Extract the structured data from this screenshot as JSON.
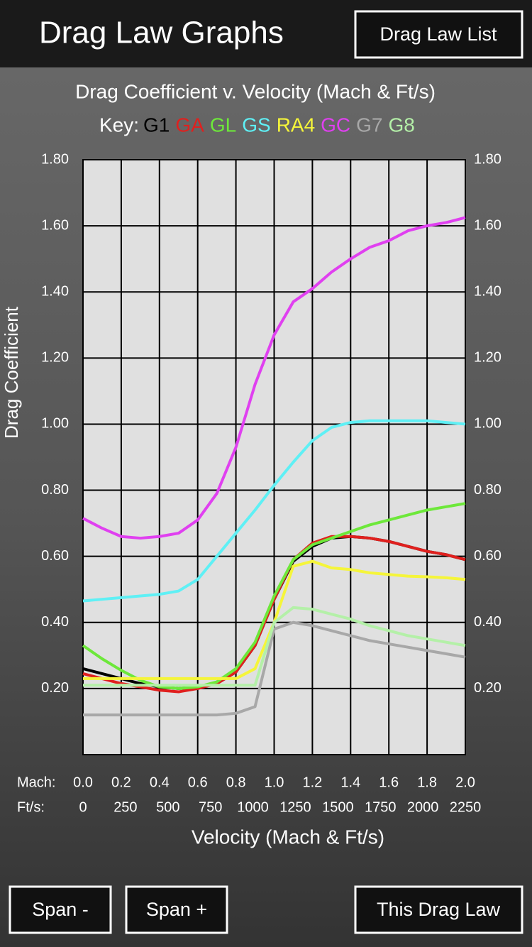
{
  "header": {
    "title": "Drag Law Graphs",
    "button": "Drag Law List"
  },
  "chart_data": {
    "type": "line",
    "title": "Drag Coefficient v. Velocity (Mach & Ft/s)",
    "legend_label": "Key:",
    "x_axis_label": "Velocity (Mach & Ft/s)",
    "y_axis_label": "Drag Coefficient",
    "x_row_label": "Mach:",
    "x2_row_label": "Ft/s:",
    "grid": true,
    "plot_background": "#e0e0e0",
    "x": [
      0,
      0.1,
      0.2,
      0.3,
      0.4,
      0.5,
      0.6,
      0.7,
      0.8,
      0.9,
      1.0,
      1.1,
      1.2,
      1.3,
      1.4,
      1.5,
      1.6,
      1.7,
      1.8,
      1.9,
      2.0
    ],
    "xlim": [
      0,
      2
    ],
    "xticks": [
      {
        "value": 0,
        "label": "0.0"
      },
      {
        "value": 0.2,
        "label": "0.2"
      },
      {
        "value": 0.4,
        "label": "0.4"
      },
      {
        "value": 0.6,
        "label": "0.6"
      },
      {
        "value": 0.8,
        "label": "0.8"
      },
      {
        "value": 1,
        "label": "1.0"
      },
      {
        "value": 1.2,
        "label": "1.2"
      },
      {
        "value": 1.4,
        "label": "1.4"
      },
      {
        "value": 1.6,
        "label": "1.6"
      },
      {
        "value": 1.8,
        "label": "1.8"
      },
      {
        "value": 2,
        "label": "2.0"
      }
    ],
    "x2lim": [
      0,
      2250
    ],
    "x2ticks": [
      0,
      250,
      500,
      750,
      1000,
      1250,
      1500,
      1750,
      2000,
      2250
    ],
    "ylim": [
      0,
      1.8
    ],
    "yticks": [
      {
        "value": 0.2,
        "label": "0.20"
      },
      {
        "value": 0.4,
        "label": "0.40"
      },
      {
        "value": 0.6,
        "label": "0.60"
      },
      {
        "value": 0.8,
        "label": "0.80"
      },
      {
        "value": 1,
        "label": "1.00"
      },
      {
        "value": 1.2,
        "label": "1.20"
      },
      {
        "value": 1.4,
        "label": "1.40"
      },
      {
        "value": 1.6,
        "label": "1.60"
      },
      {
        "value": 1.8,
        "label": "1.80"
      }
    ],
    "series": [
      {
        "name": "G1",
        "color": "#000000",
        "values": [
          0.26,
          0.245,
          0.23,
          0.215,
          0.205,
          0.2,
          0.205,
          0.215,
          0.25,
          0.33,
          0.47,
          0.585,
          0.63,
          0.655,
          0.66,
          0.655,
          0.645,
          0.63,
          0.615,
          0.605,
          0.59
        ]
      },
      {
        "name": "GA",
        "color": "#e0201e",
        "values": [
          0.245,
          0.23,
          0.215,
          0.205,
          0.195,
          0.19,
          0.2,
          0.215,
          0.25,
          0.33,
          0.47,
          0.59,
          0.64,
          0.66,
          0.66,
          0.655,
          0.645,
          0.63,
          0.615,
          0.605,
          0.59
        ]
      },
      {
        "name": "GL",
        "color": "#6de83a",
        "values": [
          0.33,
          0.29,
          0.255,
          0.225,
          0.205,
          0.2,
          0.205,
          0.22,
          0.26,
          0.34,
          0.48,
          0.59,
          0.635,
          0.655,
          0.675,
          0.695,
          0.71,
          0.725,
          0.74,
          0.75,
          0.76
        ]
      },
      {
        "name": "GS",
        "color": "#5ff0f5",
        "values": [
          0.465,
          0.47,
          0.475,
          0.48,
          0.485,
          0.495,
          0.53,
          0.6,
          0.67,
          0.74,
          0.815,
          0.885,
          0.95,
          0.99,
          1.005,
          1.01,
          1.01,
          1.01,
          1.01,
          1.005,
          1.0
        ]
      },
      {
        "name": "RA4",
        "color": "#f5f53a",
        "values": [
          0.23,
          0.23,
          0.23,
          0.23,
          0.23,
          0.23,
          0.23,
          0.23,
          0.23,
          0.26,
          0.4,
          0.57,
          0.585,
          0.565,
          0.56,
          0.55,
          0.545,
          0.54,
          0.538,
          0.535,
          0.53
        ]
      },
      {
        "name": "GC",
        "color": "#e040f0",
        "values": [
          0.715,
          0.685,
          0.66,
          0.655,
          0.66,
          0.67,
          0.71,
          0.79,
          0.93,
          1.12,
          1.27,
          1.37,
          1.41,
          1.46,
          1.5,
          1.535,
          1.555,
          1.585,
          1.6,
          1.61,
          1.625
        ]
      },
      {
        "name": "G7",
        "color": "#a8a8a8",
        "values": [
          0.12,
          0.12,
          0.12,
          0.12,
          0.12,
          0.12,
          0.12,
          0.12,
          0.125,
          0.145,
          0.38,
          0.4,
          0.39,
          0.375,
          0.36,
          0.345,
          0.335,
          0.325,
          0.315,
          0.305,
          0.295
        ]
      },
      {
        "name": "G8",
        "color": "#b4f0a8",
        "values": [
          0.21,
          0.21,
          0.21,
          0.21,
          0.21,
          0.21,
          0.21,
          0.21,
          0.21,
          0.21,
          0.4,
          0.445,
          0.44,
          0.425,
          0.41,
          0.39,
          0.375,
          0.36,
          0.35,
          0.34,
          0.33
        ]
      }
    ]
  },
  "footer": {
    "buttons": [
      "Span -",
      "Span +",
      "This Drag Law"
    ]
  }
}
